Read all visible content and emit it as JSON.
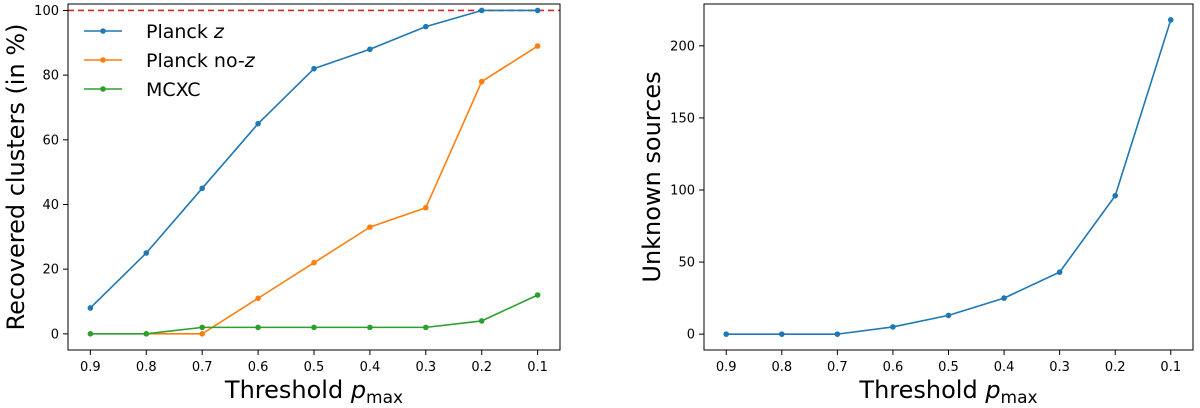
{
  "chart_data": [
    {
      "type": "line",
      "x": [
        0.9,
        0.8,
        0.7,
        0.6,
        0.5,
        0.4,
        0.3,
        0.2,
        0.1
      ],
      "x_tick_labels": [
        "0.9",
        "0.8",
        "0.7",
        "0.6",
        "0.5",
        "0.4",
        "0.3",
        "0.2",
        "0.1"
      ],
      "x_inverted": true,
      "xlim": [
        0.94,
        0.06
      ],
      "ylim": [
        -5,
        102
      ],
      "y_ticks": [
        0,
        20,
        40,
        60,
        80,
        100
      ],
      "y_tick_labels": [
        "0",
        "20",
        "40",
        "60",
        "80",
        "100"
      ],
      "xlabel_prefix": "Threshold ",
      "xlabel_symbol": "p",
      "xlabel_subscript": "max",
      "ylabel": "Recovered clusters (in %)",
      "grid": false,
      "legend_position": "top-left",
      "reference_line": {
        "y": 100,
        "style": "dashed",
        "color": "#d62728"
      },
      "series": [
        {
          "name": "Planck ",
          "name_italic": "z",
          "color": "#1f77b4",
          "values": [
            8,
            25,
            45,
            65,
            82,
            88,
            95,
            100,
            100
          ]
        },
        {
          "name": "Planck no-",
          "name_italic": "z",
          "color": "#ff7f0e",
          "values": [
            null,
            0,
            0,
            11,
            22,
            33,
            39,
            78,
            89
          ]
        },
        {
          "name": "MCXC",
          "name_italic": "",
          "color": "#2ca02c",
          "values": [
            0,
            0,
            2,
            2,
            2,
            2,
            2,
            4,
            12
          ]
        }
      ]
    },
    {
      "type": "line",
      "x": [
        0.9,
        0.8,
        0.7,
        0.6,
        0.5,
        0.4,
        0.3,
        0.2,
        0.1
      ],
      "x_tick_labels": [
        "0.9",
        "0.8",
        "0.7",
        "0.6",
        "0.5",
        "0.4",
        "0.3",
        "0.2",
        "0.1"
      ],
      "x_inverted": true,
      "xlim": [
        0.94,
        0.06
      ],
      "ylim": [
        -11,
        229
      ],
      "y_ticks": [
        0,
        50,
        100,
        150,
        200
      ],
      "y_tick_labels": [
        "0",
        "50",
        "100",
        "150",
        "200"
      ],
      "xlabel_prefix": "Threshold ",
      "xlabel_symbol": "p",
      "xlabel_subscript": "max",
      "ylabel": "Unknown sources",
      "grid": false,
      "series": [
        {
          "name": "",
          "color": "#1f77b4",
          "values": [
            0,
            0,
            0,
            5,
            13,
            25,
            43,
            96,
            218
          ]
        }
      ]
    }
  ]
}
